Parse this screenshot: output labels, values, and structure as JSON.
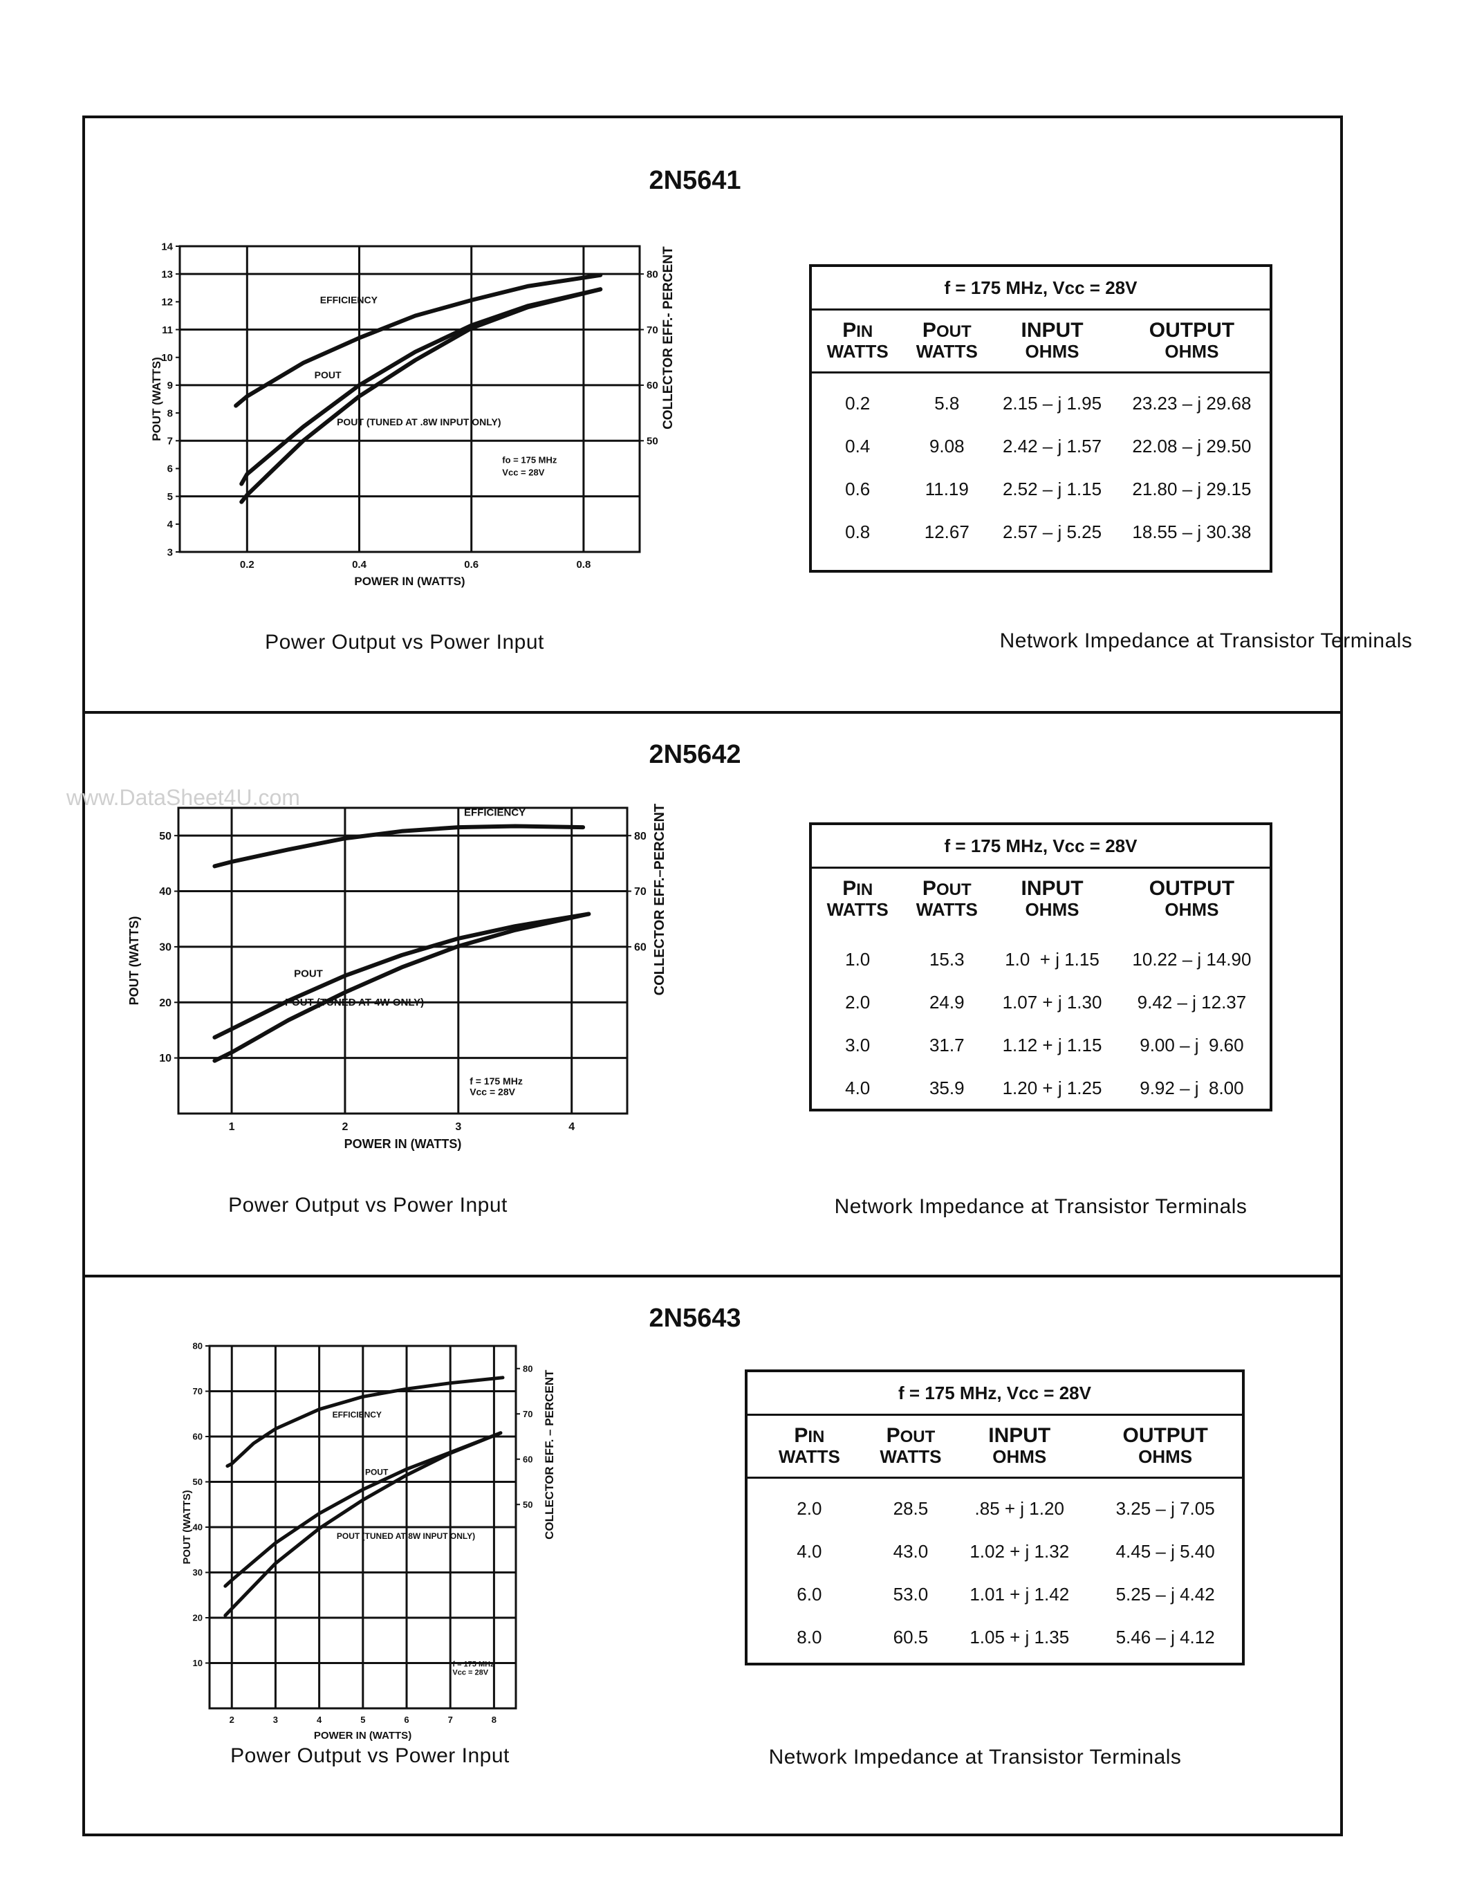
{
  "watermark": "www.DataSheet4U.com",
  "sections": [
    {
      "title": "2N5641",
      "chart_caption": "Power Output vs Power Input",
      "table_caption": "Network Impedance at Transistor  Terminals",
      "table": {
        "header": "f = 175 MHz, Vcc = 28V",
        "columns": [
          {
            "big": "P",
            "sub": "IN",
            "unit": "WATTS"
          },
          {
            "big": "P",
            "sub": "OUT",
            "unit": "WATTS"
          },
          {
            "big": "INPUT",
            "sub": "",
            "unit": "OHMS"
          },
          {
            "big": "OUTPUT",
            "sub": "",
            "unit": "OHMS"
          }
        ],
        "rows": [
          [
            "0.2",
            "5.8",
            "2.15 – j 1.95",
            "23.23 – j 29.68"
          ],
          [
            "0.4",
            "9.08",
            "2.42 – j 1.57",
            "22.08 – j 29.50"
          ],
          [
            "0.6",
            "11.19",
            "2.52 – j 1.15",
            "21.80 – j 29.15"
          ],
          [
            "0.8",
            "12.67",
            "2.57 – j 5.25",
            "18.55 – j 30.38"
          ]
        ]
      }
    },
    {
      "title": "2N5642",
      "chart_caption": "Power Output vs Power Input",
      "table_caption": "Network Impedance at Transistor  Terminals",
      "table": {
        "header": "f = 175 MHz, Vcc = 28V",
        "columns": [
          {
            "big": "P",
            "sub": "IN",
            "unit": "WATTS"
          },
          {
            "big": "P",
            "sub": "OUT",
            "unit": "WATTS"
          },
          {
            "big": "INPUT",
            "sub": "",
            "unit": "OHMS"
          },
          {
            "big": "OUTPUT",
            "sub": "",
            "unit": "OHMS"
          }
        ],
        "rows": [
          [
            "1.0",
            "15.3",
            "1.0  + j 1.15",
            "10.22 – j 14.90"
          ],
          [
            "2.0",
            "24.9",
            "1.07 + j 1.30",
            "9.42 – j 12.37"
          ],
          [
            "3.0",
            "31.7",
            "1.12 + j 1.15",
            "9.00 – j  9.60"
          ],
          [
            "4.0",
            "35.9",
            "1.20 + j 1.25",
            "9.92 – j  8.00"
          ]
        ]
      }
    },
    {
      "title": "2N5643",
      "chart_caption": "Power Output vs Power Input",
      "table_caption": "Network Impedance at Transistor  Terminals",
      "table": {
        "header": "f = 175 MHz, Vcc = 28V",
        "columns": [
          {
            "big": "P",
            "sub": "IN",
            "unit": "WATTS"
          },
          {
            "big": "P",
            "sub": "OUT",
            "unit": "WATTS"
          },
          {
            "big": "INPUT",
            "sub": "",
            "unit": "OHMS"
          },
          {
            "big": "OUTPUT",
            "sub": "",
            "unit": "OHMS"
          }
        ],
        "rows": [
          [
            "2.0",
            "28.5",
            ".85 + j 1.20",
            "3.25 – j 7.05"
          ],
          [
            "4.0",
            "43.0",
            "1.02 + j 1.32",
            "4.45 – j 5.40"
          ],
          [
            "6.0",
            "53.0",
            "1.01 + j 1.42",
            "5.25 – j 4.42"
          ],
          [
            "8.0",
            "60.5",
            "1.05 + j 1.35",
            "5.46 – j 4.12"
          ]
        ]
      }
    }
  ],
  "chart_data": [
    {
      "type": "line",
      "title": "",
      "xlabel": "POWER IN  (WATTS)",
      "ylabel": "POUT (WATTS)",
      "y2label": "COLLECTOR EFF.- PERCENT",
      "xlim": [
        0.08,
        0.9
      ],
      "ylim": [
        3,
        14
      ],
      "y2lim": [
        30,
        85
      ],
      "xticks": [
        0.2,
        0.4,
        0.6,
        0.8
      ],
      "xtick_labels": [
        "0.2",
        "0.4",
        "0.6",
        "0.8"
      ],
      "yticks": [
        3,
        4,
        5,
        6,
        7,
        8,
        9,
        10,
        11,
        12,
        13,
        14
      ],
      "ygrid": [
        5,
        7,
        9,
        11,
        13
      ],
      "y2ticks": [
        50,
        60,
        70,
        80
      ],
      "grid": true,
      "annotations": [
        "fo = 175 MHz",
        "Vcc = 28V"
      ],
      "series": [
        {
          "name": "EFFICIENCY",
          "axis": "right",
          "x": [
            0.18,
            0.2,
            0.3,
            0.4,
            0.5,
            0.6,
            0.7,
            0.83
          ],
          "y": [
            56.3,
            58,
            64,
            68.5,
            72.5,
            75.3,
            77.8,
            79.8
          ]
        },
        {
          "name": "POUT",
          "axis": "left",
          "x": [
            0.19,
            0.2,
            0.3,
            0.4,
            0.5,
            0.6,
            0.7,
            0.83
          ],
          "y": [
            5.45,
            5.8,
            7.5,
            9.0,
            10.2,
            11.15,
            11.85,
            12.45
          ]
        },
        {
          "name": "POUT (TUNED AT .8W INPUT ONLY)",
          "axis": "left",
          "x": [
            0.19,
            0.2,
            0.3,
            0.4,
            0.5,
            0.6,
            0.7,
            0.83
          ],
          "y": [
            4.8,
            5.05,
            7.0,
            8.6,
            9.9,
            11.05,
            11.8,
            12.45
          ]
        }
      ]
    },
    {
      "type": "line",
      "title": "",
      "xlabel": "POWER IN (WATTS)",
      "ylabel": "POUT (WATTS)",
      "y2label": "COLLECTOR EFF.–PERCENT",
      "xlim": [
        0.53,
        4.49
      ],
      "ylim": [
        0,
        55
      ],
      "y2lim": [
        30,
        85
      ],
      "xticks": [
        1,
        2,
        3,
        4
      ],
      "xtick_labels": [
        "1",
        "2",
        "3",
        "4"
      ],
      "yticks": [
        10,
        20,
        30,
        40,
        50
      ],
      "ygrid": [
        10,
        20,
        30,
        40,
        50
      ],
      "y2ticks": [
        60,
        70,
        80
      ],
      "grid": true,
      "annotations": [
        "f = 175 MHz",
        "Vcc = 28V"
      ],
      "series": [
        {
          "name": "EFFICIENCY",
          "axis": "right",
          "x": [
            0.85,
            1,
            1.5,
            2,
            2.5,
            3,
            3.5,
            4.1
          ],
          "y": [
            74.5,
            75.3,
            77.5,
            79.5,
            80.8,
            81.5,
            81.7,
            81.5
          ]
        },
        {
          "name": "POUT",
          "axis": "left",
          "x": [
            0.85,
            1,
            1.5,
            2,
            2.5,
            3,
            3.5,
            4.15
          ],
          "y": [
            13.7,
            15.2,
            20.3,
            24.8,
            28.5,
            31.5,
            33.7,
            35.9
          ]
        },
        {
          "name": "POUT (TUNED AT 4W ONLY)",
          "axis": "left",
          "x": [
            0.85,
            1,
            1.5,
            2,
            2.5,
            3,
            3.5,
            4.15
          ],
          "y": [
            9.5,
            11,
            16.8,
            21.8,
            26.3,
            30.1,
            33.0,
            35.9
          ]
        }
      ]
    },
    {
      "type": "line",
      "title": "",
      "xlabel": "POWER IN (WATTS)",
      "ylabel": "POUT (WATTS)",
      "y2label": "COLLECTOR EFF. – PERCENT",
      "xlim": [
        1.49,
        8.5
      ],
      "ylim": [
        0,
        80
      ],
      "y2lim": [
        5,
        85
      ],
      "xticks": [
        2,
        3,
        4,
        5,
        6,
        7,
        8
      ],
      "xtick_labels": [
        "2",
        "3",
        "4",
        "5",
        "6",
        "7",
        "8"
      ],
      "yticks": [
        10,
        20,
        30,
        40,
        50,
        60,
        70,
        80
      ],
      "ygrid": [
        10,
        20,
        30,
        40,
        50,
        60,
        70
      ],
      "y2ticks": [
        50,
        60,
        70,
        80
      ],
      "grid": true,
      "annotations": [
        "f = 175 MHz",
        "Vcc = 28V"
      ],
      "series": [
        {
          "name": "EFFICIENCY",
          "axis": "right",
          "x": [
            1.9,
            2,
            2.5,
            3,
            4,
            5,
            6,
            7,
            8.2
          ],
          "y": [
            58.5,
            59,
            63.5,
            66.7,
            71,
            73.8,
            75.5,
            76.8,
            78
          ]
        },
        {
          "name": "POUT",
          "axis": "left",
          "x": [
            1.85,
            2,
            3,
            4,
            5,
            6,
            7,
            8.15
          ],
          "y": [
            27,
            28.3,
            36.5,
            43,
            48.3,
            52.8,
            56.5,
            60.8
          ]
        },
        {
          "name": "POUT (TUNED AT 8W INPUT ONLY)",
          "axis": "left",
          "x": [
            1.85,
            2,
            3,
            4,
            5,
            6,
            7,
            8.15
          ],
          "y": [
            20.5,
            22,
            32,
            39.7,
            46,
            51.5,
            56.3,
            60.8
          ]
        }
      ]
    }
  ]
}
